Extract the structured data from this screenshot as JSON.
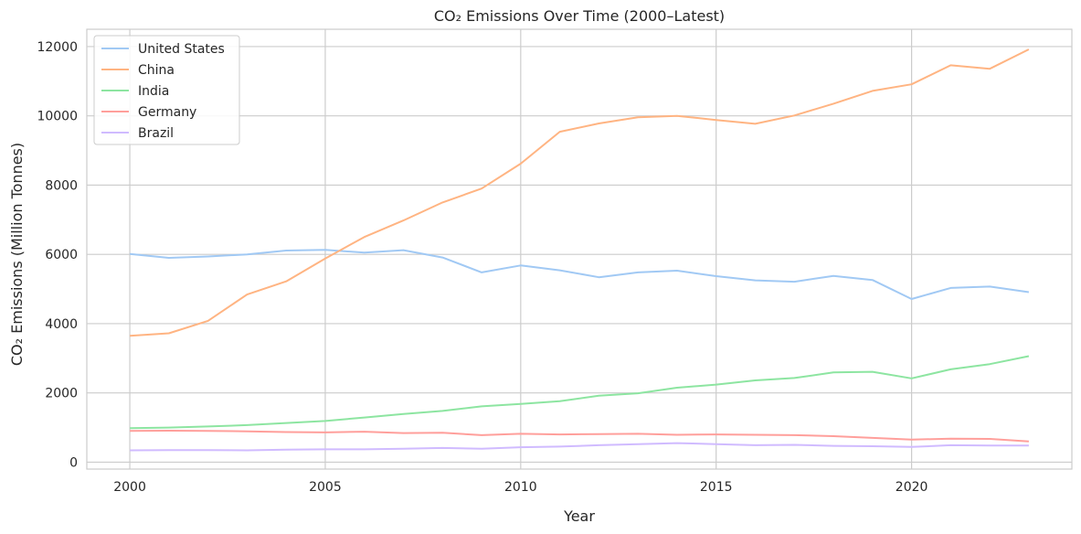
{
  "chart_data": {
    "type": "line",
    "title": "CO₂ Emissions Over Time (2000–Latest)",
    "xlabel": "Year",
    "ylabel": "CO₂ Emissions (Million Tonnes)",
    "xlim": [
      1998.9,
      2024.1
    ],
    "ylim": [
      -200,
      12500
    ],
    "x_ticks": [
      2000,
      2005,
      2010,
      2015,
      2020
    ],
    "y_ticks": [
      0,
      2000,
      4000,
      6000,
      8000,
      10000,
      12000
    ],
    "grid": true,
    "legend_position": "top-left",
    "x": [
      2000,
      2001,
      2002,
      2003,
      2004,
      2005,
      2006,
      2007,
      2008,
      2009,
      2010,
      2011,
      2012,
      2013,
      2014,
      2015,
      2016,
      2017,
      2018,
      2019,
      2020,
      2021,
      2022,
      2023
    ],
    "series": [
      {
        "name": "United States",
        "color": "#a1c9f4",
        "values": [
          6010,
          5900,
          5940,
          6000,
          6110,
          6130,
          6050,
          6120,
          5910,
          5480,
          5680,
          5540,
          5340,
          5480,
          5530,
          5370,
          5250,
          5210,
          5380,
          5260,
          4710,
          5030,
          5070,
          4910
        ]
      },
      {
        "name": "China",
        "color": "#ffb482",
        "values": [
          3650,
          3720,
          4080,
          4840,
          5220,
          5880,
          6500,
          6980,
          7500,
          7900,
          8620,
          9540,
          9780,
          9960,
          10000,
          9880,
          9770,
          10010,
          10350,
          10720,
          10910,
          11460,
          11360,
          11920
        ]
      },
      {
        "name": "India",
        "color": "#8de5a1",
        "values": [
          980,
          1000,
          1030,
          1070,
          1130,
          1190,
          1290,
          1390,
          1480,
          1610,
          1680,
          1760,
          1920,
          1990,
          2150,
          2240,
          2360,
          2430,
          2590,
          2610,
          2420,
          2680,
          2830,
          3060
        ]
      },
      {
        "name": "Germany",
        "color": "#ff9f9b",
        "values": [
          900,
          910,
          900,
          890,
          870,
          860,
          880,
          840,
          850,
          780,
          820,
          800,
          810,
          820,
          790,
          800,
          790,
          780,
          750,
          700,
          650,
          680,
          670,
          600
        ]
      },
      {
        "name": "Brazil",
        "color": "#d0bbff",
        "values": [
          340,
          350,
          350,
          340,
          360,
          370,
          370,
          390,
          410,
          390,
          430,
          450,
          490,
          520,
          550,
          520,
          490,
          500,
          470,
          460,
          440,
          490,
          480,
          480
        ]
      }
    ]
  }
}
